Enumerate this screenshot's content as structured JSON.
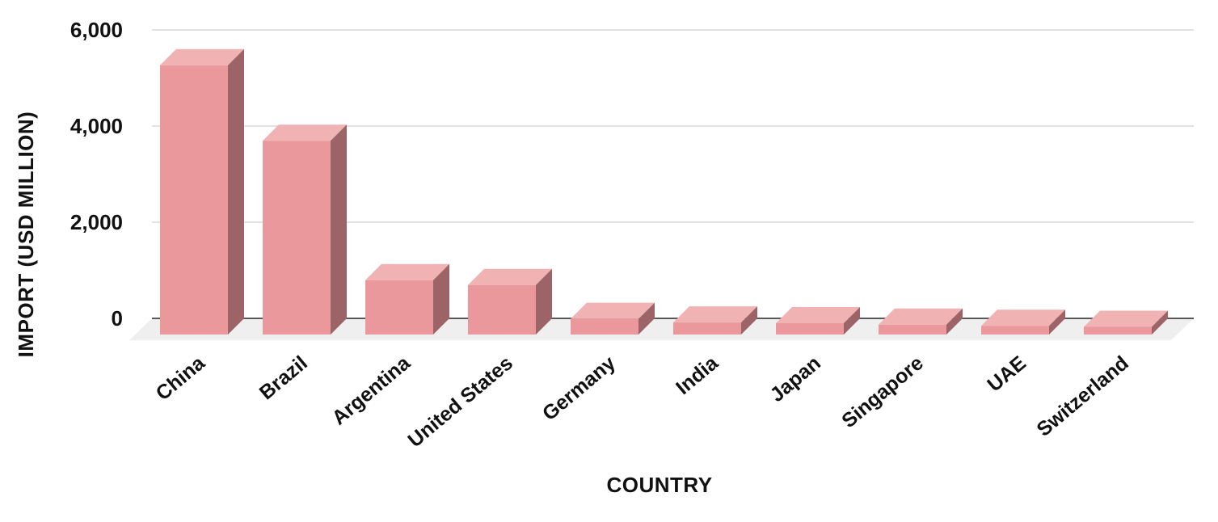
{
  "chart_data": {
    "type": "bar",
    "variant": "3d-column",
    "title": "",
    "xlabel": "COUNTRY",
    "ylabel": "IMPORT (USD MILLION)",
    "categories": [
      "China",
      "Brazil",
      "Argentina",
      "United States",
      "Germany",
      "India",
      "Japan",
      "Singapore",
      "UAE",
      "Switzerland"
    ],
    "values": [
      5600,
      4030,
      1130,
      1030,
      325,
      250,
      235,
      205,
      180,
      160
    ],
    "ylim": [
      0,
      6000
    ],
    "ytick_values": [
      0,
      2000,
      4000,
      6000
    ],
    "ytick_labels": [
      "0",
      "2,000",
      "4,000",
      "6,000"
    ],
    "grid": true,
    "legend": false,
    "category_label_rotation_deg": -40,
    "colors": {
      "bar_front": "#EA989B",
      "bar_top": "#F1B2B4",
      "bar_side": "#9C6466",
      "floor": "#EFEFEF",
      "gridline": "#D9D9D9",
      "axis_line": "#595959",
      "text": "#111111",
      "background": "#FFFFFF"
    }
  }
}
